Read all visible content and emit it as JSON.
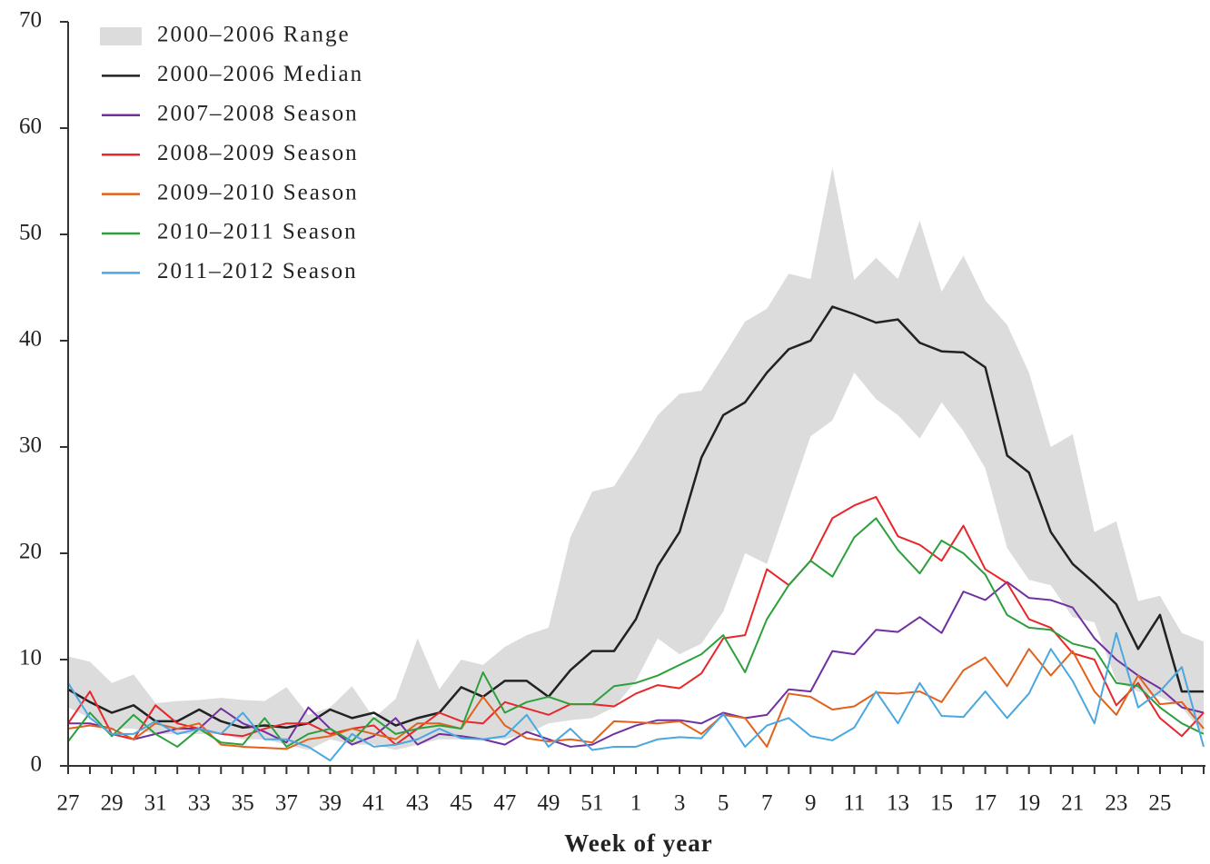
{
  "chart_data": {
    "type": "line",
    "xlabel": "Week of year",
    "categories": [
      27,
      null,
      29,
      null,
      31,
      null,
      33,
      null,
      35,
      null,
      37,
      null,
      39,
      null,
      41,
      null,
      43,
      null,
      45,
      null,
      47,
      null,
      49,
      null,
      51,
      null,
      1,
      null,
      3,
      null,
      5,
      null,
      7,
      null,
      9,
      null,
      11,
      null,
      13,
      null,
      15,
      null,
      17,
      null,
      19,
      null,
      21,
      null,
      23,
      null,
      25,
      null,
      null
    ],
    "ylim": [
      0,
      70
    ],
    "yticks": [
      0,
      10,
      20,
      30,
      40,
      50,
      60,
      70
    ],
    "legend": "upper-left",
    "range": {
      "name": "2000–2006 Range",
      "color": "#dcdcdc",
      "high": [
        10.3,
        9.8,
        7.8,
        8.6,
        5.9,
        6.1,
        6.2,
        6.4,
        6.2,
        6.1,
        7.4,
        4.8,
        5.5,
        7.5,
        4.5,
        6.3,
        12,
        7.2,
        10,
        9.5,
        11.2,
        12.3,
        13,
        21.5,
        25.8,
        26.3,
        29.5,
        33,
        35,
        35.3,
        38.5,
        41.8,
        43,
        46.3,
        45.8,
        56.3,
        45.7,
        47.8,
        45.8,
        51.3,
        44.6,
        48,
        43.8,
        41.5,
        37,
        30,
        31.2,
        22,
        23,
        15.5,
        16,
        12.5,
        11.7
      ],
      "low": [
        5.5,
        4.5,
        3.5,
        3.5,
        3,
        3,
        3,
        3,
        2.5,
        2.5,
        2,
        1.5,
        2.5,
        2,
        2,
        1.5,
        2,
        2.5,
        2.5,
        2.5,
        2.5,
        3,
        4,
        4.3,
        4.5,
        5.5,
        8,
        12,
        10.5,
        11.5,
        14.5,
        20,
        19,
        25,
        31,
        32.5,
        37,
        34.5,
        33,
        30.8,
        34.2,
        31.5,
        28,
        20.5,
        17.5,
        17,
        14,
        13.5,
        8,
        7,
        6.5,
        5.5,
        3
      ]
    },
    "series": [
      {
        "name": "2000–2006 Median",
        "color": "#222222",
        "values": [
          7.2,
          6,
          5,
          5.7,
          4.2,
          4.2,
          5.3,
          4.2,
          3.6,
          3.8,
          3.6,
          4,
          5.3,
          4.5,
          5,
          3.8,
          4.5,
          5,
          7.4,
          6.5,
          8,
          8,
          6.5,
          9,
          10.8,
          10.8,
          13.8,
          18.8,
          22,
          29,
          33,
          34.2,
          37,
          39.2,
          40,
          43.2,
          42.5,
          41.7,
          42,
          39.8,
          39,
          38.9,
          37.5,
          29.2,
          27.6,
          22,
          19,
          17.2,
          15.2,
          11,
          14.2,
          7,
          7
        ]
      },
      {
        "name": "2007–2008 Season",
        "color": "#7030a0",
        "values": [
          4,
          4,
          3.5,
          2.5,
          3,
          3.5,
          3.5,
          5.4,
          4,
          3.2,
          2.2,
          5.5,
          3.5,
          2,
          2.8,
          4.5,
          2,
          3,
          2.8,
          2.5,
          2,
          3.2,
          2.5,
          1.8,
          2,
          3,
          3.8,
          4.3,
          4.3,
          4,
          5,
          4.5,
          4.8,
          7.2,
          7,
          10.8,
          10.5,
          12.8,
          12.6,
          14,
          12.5,
          16.4,
          15.6,
          17.3,
          15.8,
          15.6,
          14.9,
          12,
          10,
          8.5,
          7.3,
          5.5,
          5
        ]
      },
      {
        "name": "2008–2009 Season",
        "color": "#e8262b",
        "values": [
          4,
          7,
          3,
          2.5,
          5.7,
          4,
          3.5,
          3,
          2.8,
          3.5,
          4,
          4,
          3,
          3.5,
          3.8,
          2,
          3.5,
          5,
          4.2,
          4,
          6,
          5.4,
          4.8,
          5.8,
          5.8,
          5.6,
          6.8,
          7.6,
          7.3,
          8.7,
          12,
          12.3,
          18.5,
          17,
          19.3,
          23.3,
          24.5,
          25.3,
          21.6,
          20.8,
          19.3,
          22.6,
          18.5,
          17.2,
          13.8,
          13,
          10.6,
          10,
          5.7,
          7.8,
          4.5,
          2.8,
          5
        ]
      },
      {
        "name": "2009–2010 Season",
        "color": "#e2621b",
        "values": [
          3.5,
          3.8,
          3.5,
          2.5,
          4,
          3.5,
          4,
          2,
          1.8,
          1.7,
          1.6,
          2.5,
          2.8,
          3.5,
          3,
          2.5,
          4,
          4,
          3.5,
          6.5,
          3.8,
          2.6,
          2.3,
          2.5,
          2.2,
          4.2,
          4.1,
          4,
          4.2,
          3,
          4.8,
          4.5,
          1.8,
          6.8,
          6.5,
          5.3,
          5.6,
          6.9,
          6.8,
          7,
          6,
          9,
          10.2,
          7.5,
          11,
          8.5,
          10.8,
          7,
          4.8,
          8.5,
          5.8,
          6,
          3.5
        ]
      },
      {
        "name": "2010–2011 Season",
        "color": "#2ca03c",
        "values": [
          2.3,
          5,
          2.8,
          4.8,
          3,
          1.8,
          3.5,
          2.2,
          2,
          4.5,
          1.8,
          3,
          3.5,
          2.3,
          4.5,
          3,
          3.5,
          3.8,
          3.5,
          8.8,
          5,
          6,
          6.5,
          5.8,
          5.8,
          7.5,
          7.8,
          8.5,
          9.5,
          10.5,
          12.3,
          8.8,
          13.8,
          17,
          19.3,
          17.8,
          21.5,
          23.3,
          20.3,
          18.1,
          21.2,
          20,
          18,
          14.2,
          13,
          12.8,
          11.5,
          11,
          7.8,
          7.5,
          5.5,
          4,
          3
        ]
      },
      {
        "name": "2011–2012 Season",
        "color": "#4aa8e0",
        "values": [
          7.8,
          4.5,
          3,
          3,
          4.2,
          3,
          3.5,
          3,
          5,
          2.5,
          2.5,
          1.8,
          0.5,
          3,
          1.8,
          2,
          2.5,
          3.5,
          2.6,
          2.5,
          2.8,
          4.8,
          1.8,
          3.5,
          1.5,
          1.8,
          1.8,
          2.5,
          2.7,
          2.6,
          4.9,
          1.8,
          3.8,
          4.5,
          2.8,
          2.4,
          3.6,
          7,
          4,
          7.8,
          4.7,
          4.6,
          7,
          4.5,
          6.8,
          11,
          8,
          4,
          12.5,
          5.5,
          7,
          9.3,
          1.8
        ]
      }
    ]
  }
}
